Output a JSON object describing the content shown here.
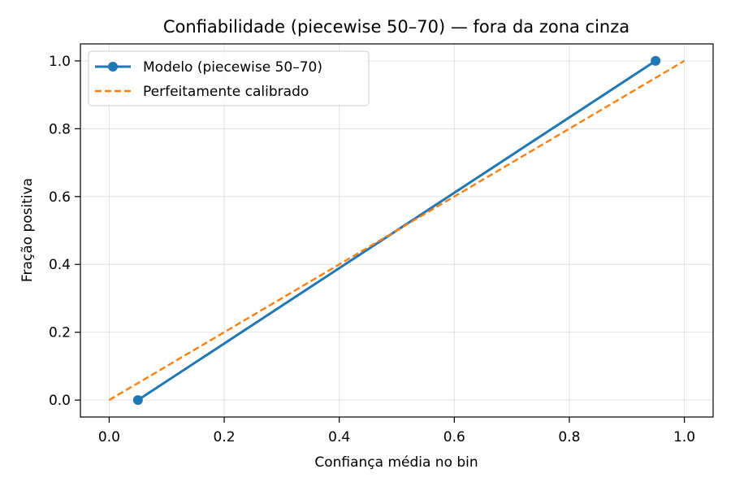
{
  "chart_data": {
    "type": "line",
    "title": "Confiabilidade (piecewise 50–70) — fora da zona cinza",
    "xlabel": "Confiança média no bin",
    "ylabel": "Fração positiva",
    "xlim": [
      -0.05,
      1.05
    ],
    "ylim": [
      -0.05,
      1.05
    ],
    "xticks": [
      0.0,
      0.2,
      0.4,
      0.6,
      0.8,
      1.0
    ],
    "yticks": [
      0.0,
      0.2,
      0.4,
      0.6,
      0.8,
      1.0
    ],
    "xtick_labels": [
      "0.0",
      "0.2",
      "0.4",
      "0.6",
      "0.8",
      "1.0"
    ],
    "ytick_labels": [
      "0.0",
      "0.2",
      "0.4",
      "0.6",
      "0.8",
      "1.0"
    ],
    "grid": true,
    "legend_position": "top-left",
    "series": [
      {
        "name": "Modelo (piecewise 50–70)",
        "style": "solid-with-markers",
        "color": "#1f77b4",
        "x": [
          0.05,
          0.95
        ],
        "y": [
          0.0,
          1.0
        ]
      },
      {
        "name": "Perfeitamente calibrado",
        "style": "dashed",
        "color": "#ff7f0e",
        "x": [
          0.0,
          1.0
        ],
        "y": [
          0.0,
          1.0
        ]
      }
    ]
  }
}
